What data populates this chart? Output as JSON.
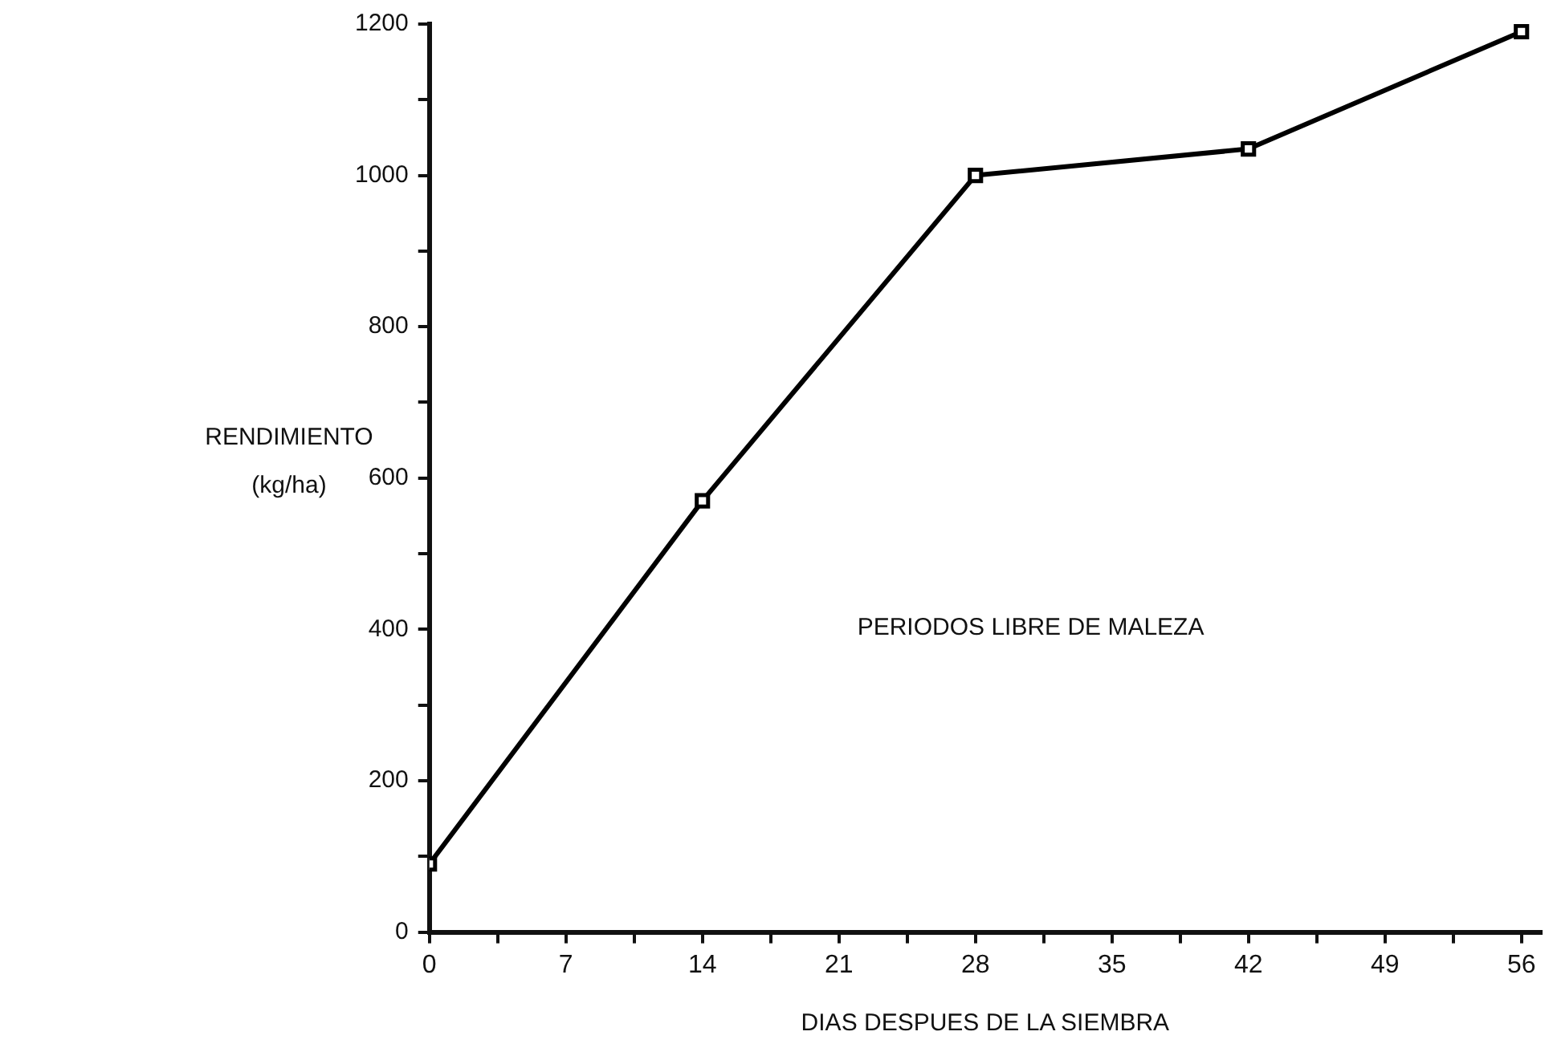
{
  "chart_data": {
    "type": "line",
    "xlabel": "DIAS DESPUES DE LA SIEMBRA",
    "ylabel": "RENDIMIENTO (kg/ha)",
    "annotations": [
      "PERIODOS LIBRE DE MALEZA"
    ],
    "x": [
      0,
      14,
      28,
      42,
      56
    ],
    "series": [
      {
        "color": "#000000",
        "values": [
          90,
          570,
          1000,
          1035,
          1190
        ]
      }
    ],
    "xlim": [
      0,
      57
    ],
    "xticks": [
      0,
      {
        "value": 3.5,
        "label": null
      },
      7,
      {
        "value": 10.5,
        "label": null
      },
      14,
      {
        "value": 17.5,
        "label": null
      },
      21,
      {
        "value": 24.5,
        "label": null
      },
      28,
      {
        "value": 31.5,
        "label": null
      },
      35,
      {
        "value": 38.5,
        "label": null
      },
      42,
      {
        "value": 45.5,
        "label": null
      },
      49,
      {
        "value": 52.5,
        "label": null
      },
      56
    ],
    "ylim": [
      0,
      1200
    ],
    "yticks": [
      0,
      {
        "value": 100,
        "label": null
      },
      200,
      {
        "value": 300,
        "label": null
      },
      400,
      {
        "value": 500,
        "label": null
      },
      600,
      {
        "value": 700,
        "label": null
      },
      800,
      {
        "value": 900,
        "label": null
      },
      1000,
      {
        "value": 1100,
        "label": null
      },
      1200
    ],
    "grid": false,
    "legend": false,
    "marker": "square",
    "line_style": "solid"
  }
}
